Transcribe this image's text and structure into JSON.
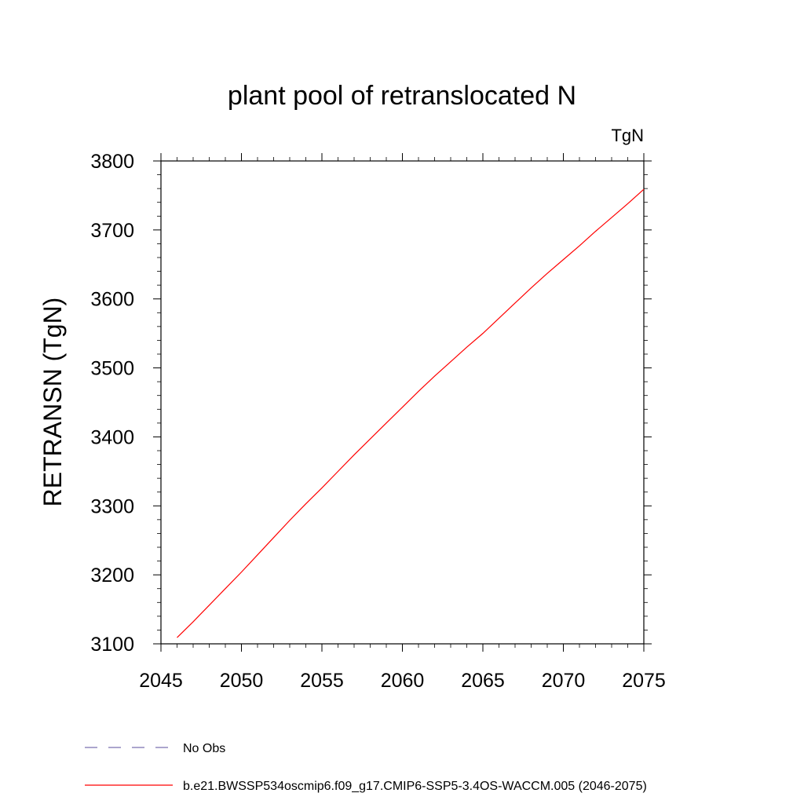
{
  "chart_data": {
    "type": "line",
    "title": "plant pool of retranslocated N",
    "units_label": "TgN",
    "ylabel": "RETRANSN  (TgN)",
    "xlabel": "",
    "xlim": [
      2045,
      2075
    ],
    "ylim": [
      3100,
      3800
    ],
    "x_ticks": [
      2045,
      2050,
      2055,
      2060,
      2065,
      2070,
      2075
    ],
    "y_ticks": [
      3100,
      3200,
      3300,
      3400,
      3500,
      3600,
      3700,
      3800
    ],
    "grid": false,
    "legend_position": "bottom",
    "series": [
      {
        "name": "No Obs",
        "style": "dashed",
        "color": "#7b6fb0",
        "x": [],
        "y": []
      },
      {
        "name": "b.e21.BWSSP534oscmip6.f09_g17.CMIP6-SSP5-3.4OS-WACCM.005 (2046-2075)",
        "style": "solid",
        "color": "#ff0000",
        "x": [
          2046,
          2047,
          2048,
          2049,
          2050,
          2051,
          2052,
          2053,
          2054,
          2055,
          2056,
          2057,
          2058,
          2059,
          2060,
          2061,
          2062,
          2063,
          2064,
          2065,
          2066,
          2067,
          2068,
          2069,
          2070,
          2071,
          2072,
          2073,
          2074,
          2075
        ],
        "y": [
          3109,
          3132,
          3156,
          3180,
          3204,
          3229,
          3254,
          3279,
          3303,
          3326,
          3350,
          3374,
          3397,
          3420,
          3443,
          3466,
          3488,
          3509,
          3530,
          3550,
          3572,
          3594,
          3616,
          3637,
          3657,
          3677,
          3698,
          3718,
          3738,
          3759
        ]
      }
    ]
  }
}
